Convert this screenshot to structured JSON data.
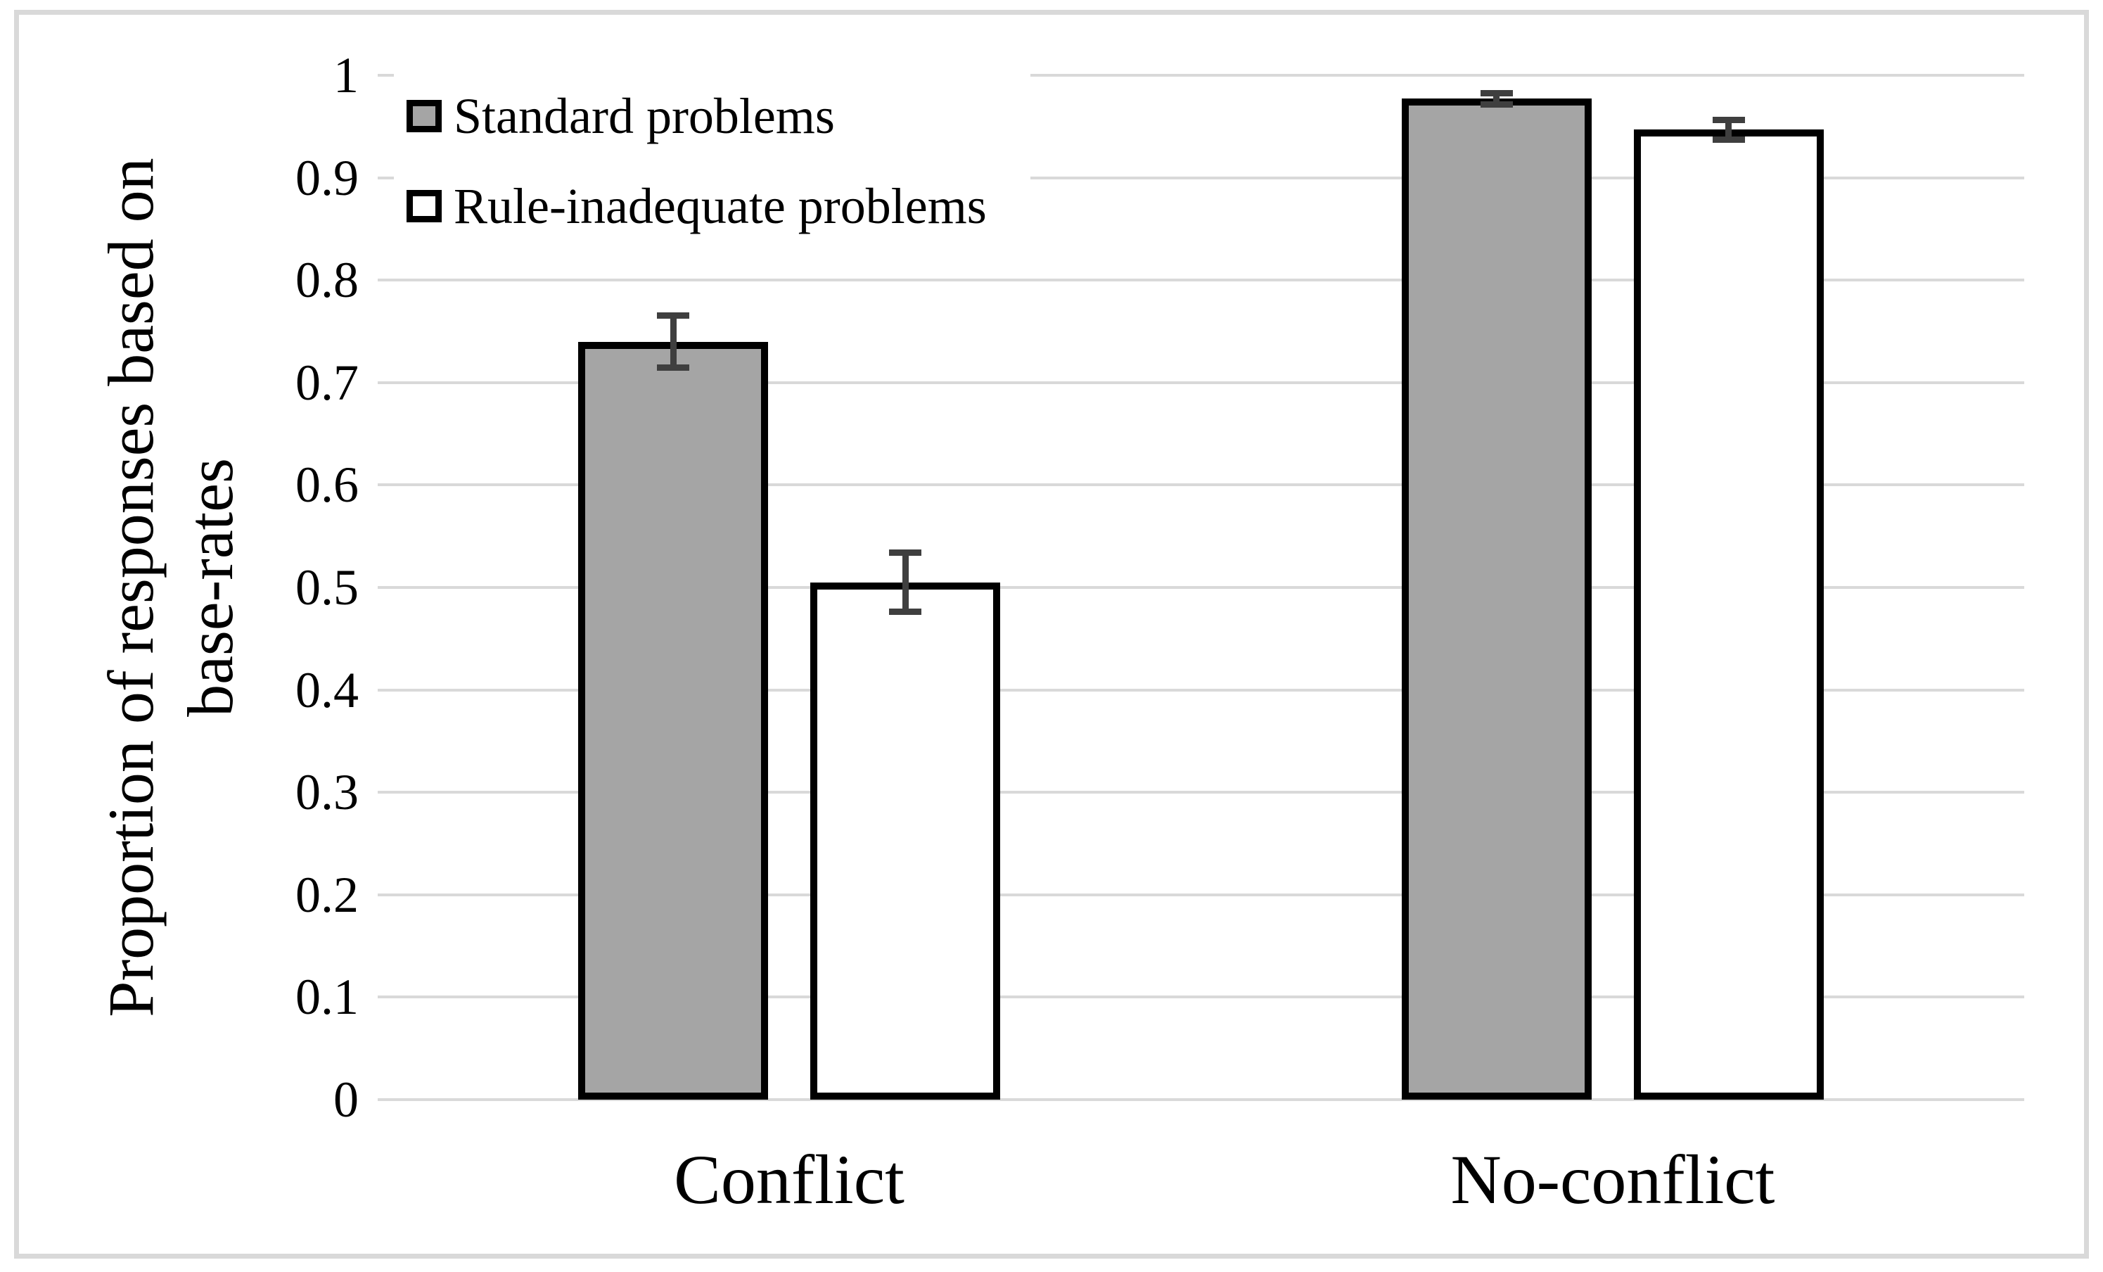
{
  "figure": {
    "background_color": "#ffffff",
    "frame_color": "#d9d9d9"
  },
  "chart_data": {
    "type": "bar",
    "title": "",
    "categories": [
      "Conflict",
      "No-conflict"
    ],
    "series": [
      {
        "name": "Standard problems",
        "fill": "#a5a5a5",
        "border": "#000000",
        "values": [
          0.74,
          0.977
        ],
        "errors": [
          0.026,
          0.006
        ]
      },
      {
        "name": "Rule-inadequate problems",
        "fill": "#ffffff",
        "border": "#000000",
        "values": [
          0.505,
          0.947
        ],
        "errors": [
          0.029,
          0.01
        ]
      }
    ],
    "xlabel": "",
    "ylabel_line1": "Proportion of responses based on",
    "ylabel_line2": "base-rates",
    "ylim": [
      0,
      1
    ],
    "y_ticks": [
      "1",
      "0.9",
      "0.8",
      "0.7",
      "0.6",
      "0.5",
      "0.4",
      "0.3",
      "0.2",
      "0.1",
      "0"
    ],
    "grid": "horizontal",
    "gridline_color": "#d9d9d9",
    "errorbar_color": "#3f3f3f",
    "legend_position": "top-left"
  }
}
